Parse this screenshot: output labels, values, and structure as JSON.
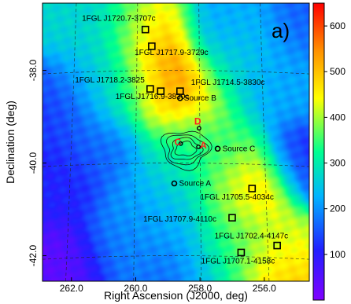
{
  "chart_data": {
    "type": "heatmap",
    "panel_label": "a)",
    "xlabel": "Right Ascension (J2000, deg)",
    "ylabel": "Declination (deg)",
    "xlim": [
      262.9,
      254.6
    ],
    "ylim": [
      -42.55,
      -36.55
    ],
    "x_ticks": [
      262.0,
      260.0,
      258.0,
      256.0
    ],
    "x_tick_labels": [
      "262.0",
      "260.0",
      "258.0",
      "256.0"
    ],
    "y_ticks": [
      -38.0,
      -40.0,
      -42.0
    ],
    "y_tick_labels": [
      "-38.0",
      "-40.0",
      "-42.0"
    ],
    "colorbar": {
      "min": 0,
      "max": 650,
      "ticks": [
        100,
        200,
        300,
        400,
        500,
        600
      ],
      "tick_labels": [
        "100",
        "200",
        "300",
        "400",
        "500",
        "600"
      ],
      "colors": [
        "#8000ff",
        "#2020ff",
        "#00b4ff",
        "#00ff90",
        "#ffff00",
        "#ff9000",
        "#ff0000"
      ]
    },
    "grid": true,
    "sources": [
      {
        "name": "1FGL J1720.7-3707c",
        "ra": 259.7,
        "dec": -37.12,
        "marker": "square"
      },
      {
        "name": "1FGL J1717.9-3729c",
        "ra": 259.5,
        "dec": -37.48,
        "marker": "square"
      },
      {
        "name": "1FGL J1718.2-3825",
        "ra": 259.55,
        "dec": -38.4,
        "marker": "square"
      },
      {
        "name": "1FGL J1716.9-3830c",
        "ra": 259.22,
        "dec": -38.45,
        "marker": "square"
      },
      {
        "name": "1FGL J1714.5-3830c",
        "ra": 258.62,
        "dec": -38.45,
        "marker": "square"
      },
      {
        "name": "1FGL J1705.5-4034c",
        "ra": 256.38,
        "dec": -40.55,
        "marker": "square"
      },
      {
        "name": "1FGL J1707.9-4110c",
        "ra": 257.0,
        "dec": -41.18,
        "marker": "square"
      },
      {
        "name": "1FGL J1702.4-4147c",
        "ra": 255.6,
        "dec": -41.78,
        "marker": "square"
      },
      {
        "name": "1FGL J1707.1-4158c",
        "ra": 256.72,
        "dec": -41.93,
        "marker": "square"
      },
      {
        "name": "Source B",
        "ra": 258.62,
        "dec": -38.6,
        "marker": "circle"
      },
      {
        "name": "Source C",
        "ra": 257.45,
        "dec": -39.69,
        "marker": "circle"
      },
      {
        "name": "Source A",
        "ra": 258.8,
        "dec": -40.44,
        "marker": "circle"
      }
    ],
    "markers": [
      {
        "name": "C",
        "ra": 258.6,
        "dec": -39.58
      },
      {
        "name": "A",
        "ra": 258.05,
        "dec": -39.65
      },
      {
        "name": "D",
        "ra": 258.03,
        "dec": -39.25
      }
    ],
    "hotspots": [
      {
        "ra": 258.62,
        "dec": -38.45,
        "value": 650
      },
      {
        "ra": 259.5,
        "dec": -37.48,
        "value": 620
      },
      {
        "ra": 256.4,
        "dec": -40.55,
        "value": 560
      },
      {
        "ra": 255.7,
        "dec": -42.15,
        "value": 540
      },
      {
        "ra": 259.55,
        "dec": -38.4,
        "value": 420
      },
      {
        "ra": 259.7,
        "dec": -37.12,
        "value": 400
      },
      {
        "ra": 258.0,
        "dec": -38.85,
        "value": 380
      },
      {
        "ra": 255.6,
        "dec": -41.78,
        "value": 380
      },
      {
        "ra": 257.2,
        "dec": -40.45,
        "value": 360
      },
      {
        "ra": 257.0,
        "dec": -41.18,
        "value": 360
      },
      {
        "ra": 256.72,
        "dec": -41.93,
        "value": 360
      },
      {
        "ra": 257.45,
        "dec": -39.69,
        "value": 340
      },
      {
        "ra": 258.6,
        "dec": -39.55,
        "value": 310
      },
      {
        "ra": 258.8,
        "dec": -40.44,
        "value": 300
      },
      {
        "ra": 257.5,
        "dec": -42.15,
        "value": 300
      },
      {
        "ra": 260.6,
        "dec": -38.4,
        "value": 290
      },
      {
        "ra": 261.8,
        "dec": -36.9,
        "value": 270
      },
      {
        "ra": 260.5,
        "dec": -37.3,
        "value": 260
      },
      {
        "ra": 261.3,
        "dec": -38.1,
        "value": 240
      },
      {
        "ra": 255.2,
        "dec": -38.2,
        "value": 220
      },
      {
        "ra": 256.2,
        "dec": -38.2,
        "value": 210
      },
      {
        "ra": 256.6,
        "dec": -37.3,
        "value": 240
      },
      {
        "ra": 259.6,
        "dec": -40.8,
        "value": 200
      },
      {
        "ra": 260.5,
        "dec": -41.8,
        "value": 190
      },
      {
        "ra": 258.8,
        "dec": -41.2,
        "value": 220
      },
      {
        "ra": 257.4,
        "dec": -37.1,
        "value": 210
      },
      {
        "ra": 262.4,
        "dec": -40.4,
        "value": 110
      },
      {
        "ra": 262.2,
        "dec": -42.2,
        "value": 40
      },
      {
        "ra": 262.3,
        "dec": -38.7,
        "value": 130
      },
      {
        "ra": 254.9,
        "dec": -40.0,
        "value": 120
      },
      {
        "ra": 254.8,
        "dec": -37.0,
        "value": 160
      },
      {
        "ra": 258.5,
        "dec": -42.3,
        "value": 160
      },
      {
        "ra": 261.0,
        "dec": -39.6,
        "value": 170
      },
      {
        "ra": 257.1,
        "dec": -38.0,
        "value": 300
      }
    ]
  }
}
